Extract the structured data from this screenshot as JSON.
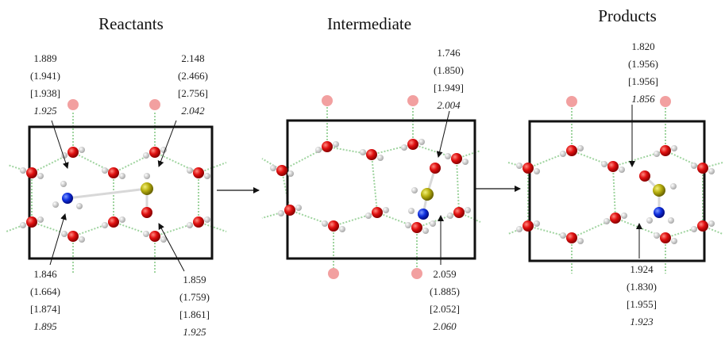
{
  "panels": [
    {
      "title": "Reactants",
      "labels": [
        [
          "1.889",
          "(1.941)",
          "[1.938]",
          "1.925"
        ],
        [
          "2.148",
          "(2.466)",
          "[2.756]",
          "2.042"
        ],
        [
          "1.846",
          "(1.664)",
          "[1.874]",
          "1.895"
        ],
        [
          "1.859",
          "(1.759)",
          "[1.861]",
          "1.925"
        ]
      ]
    },
    {
      "title": "Intermediate",
      "labels": [
        [
          "1.746",
          "(1.850)",
          "[1.949]",
          "2.004"
        ],
        [
          "2.059",
          "(1.885)",
          "[2.052]",
          "2.060"
        ]
      ]
    },
    {
      "title": "Products",
      "labels": [
        [
          "1.820",
          "(1.956)",
          "[1.956]",
          "1.856"
        ],
        [
          "1.924",
          "(1.830)",
          "[1.955]",
          "1.923"
        ]
      ]
    }
  ]
}
